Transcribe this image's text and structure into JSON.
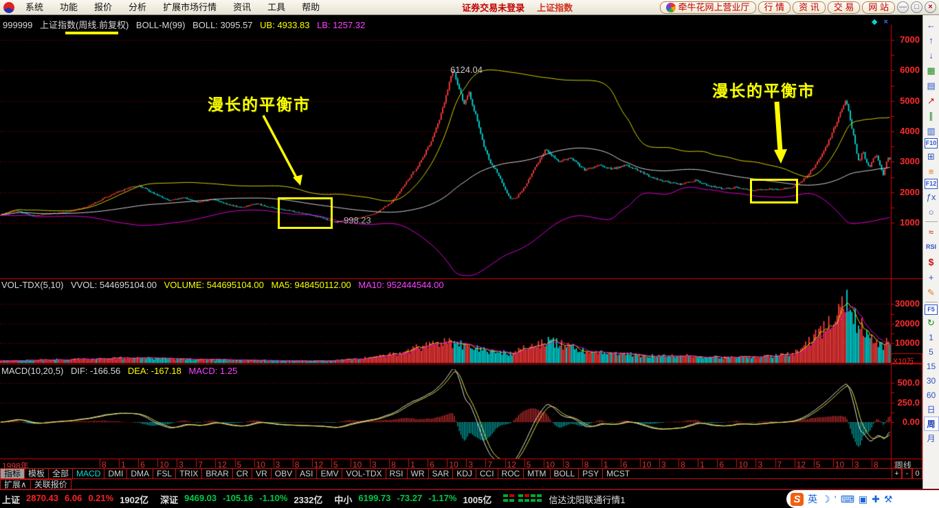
{
  "app": {
    "menu": [
      "系统",
      "功能",
      "报价",
      "分析",
      "扩展市场行情",
      "资讯",
      "工具",
      "帮助"
    ],
    "login_status": "证券交易未登录",
    "index_link": "上证指数",
    "portal_button": "牵牛花网上营业厅",
    "nav_buttons": [
      "行  情",
      "资  讯",
      "交  易",
      "网  站"
    ],
    "window_controls": {
      "minimize": "—",
      "restore": "□",
      "close": "×"
    }
  },
  "chart_header": {
    "code": "999999",
    "name": "上证指数(周线.前复权)",
    "indicator": "BOLL-M(99)",
    "boll": "BOLL: 3095.57",
    "ub": "UB: 4933.83",
    "lb": "LB: 1257.32"
  },
  "vol_header": {
    "name": "VOL-TDX(5,10)",
    "vvol": "VVOL: 544695104.00",
    "volume": "VOLUME: 544695104.00",
    "ma5": "MA5: 948450112.00",
    "ma10": "MA10: 952444544.00"
  },
  "macd_header": {
    "name": "MACD(10,20,5)",
    "dif": "DIF: -166.56",
    "dea": "DEA: -167.18",
    "macd": "MACD: 1.25"
  },
  "annotations": {
    "balance1": "漫长的平衡市",
    "balance2": "漫长的平衡市",
    "peak_label": "6124.04",
    "low_label": "←998.23",
    "vol_unit": "X10万",
    "axis_period": "周线",
    "pane_diamond": "◆",
    "pane_close": "×"
  },
  "axes": {
    "price_ticks": [
      "7000",
      "6000",
      "5000",
      "4000",
      "3000",
      "2000",
      "1000"
    ],
    "vol_ticks": [
      "30000",
      "20000",
      "10000"
    ],
    "macd_ticks": [
      "500.0",
      "250.0",
      "0.00"
    ],
    "timeline_year": "1998年",
    "timeline_months": [
      "8",
      "1",
      "6",
      "10",
      "3",
      "7",
      "12",
      "5",
      "10",
      "3",
      "8",
      "12",
      "5",
      "10",
      "3",
      "8",
      "1",
      "6",
      "10",
      "3",
      "7",
      "12",
      "5",
      "10",
      "3",
      "8",
      "1",
      "6",
      "10",
      "3",
      "8",
      "1",
      "6",
      "10",
      "3",
      "7",
      "12",
      "5",
      "10",
      "3",
      "8",
      "1"
    ]
  },
  "tabs": {
    "row1": [
      {
        "label": "指标",
        "active": true
      },
      {
        "label": "模板"
      },
      {
        "label": "全部"
      },
      {
        "label": "MACD",
        "hl": true
      },
      {
        "label": "DMI"
      },
      {
        "label": "DMA"
      },
      {
        "label": "FSL"
      },
      {
        "label": "TRIX"
      },
      {
        "label": "BRAR"
      },
      {
        "label": "CR"
      },
      {
        "label": "VR"
      },
      {
        "label": "OBV"
      },
      {
        "label": "ASI"
      },
      {
        "label": "EMV"
      },
      {
        "label": "VOL-TDX"
      },
      {
        "label": "RSI"
      },
      {
        "label": "WR"
      },
      {
        "label": "SAR"
      },
      {
        "label": "KDJ"
      },
      {
        "label": "CCI"
      },
      {
        "label": "ROC"
      },
      {
        "label": "MTM"
      },
      {
        "label": "BOLL"
      },
      {
        "label": "PSY"
      },
      {
        "label": "MCST"
      }
    ],
    "row1_right": [
      "+",
      "-",
      "0"
    ],
    "row2": [
      "扩展∧",
      "关联报价"
    ]
  },
  "status_bar": {
    "items": [
      {
        "text": "上证",
        "c": "w"
      },
      {
        "text": "2870.43",
        "c": "r"
      },
      {
        "text": "6.06",
        "c": "r"
      },
      {
        "text": "0.21%",
        "c": "r"
      },
      {
        "text": "1902亿",
        "c": "w",
        "gap": true
      },
      {
        "text": "深证",
        "c": "w"
      },
      {
        "text": "9469.03",
        "c": "g"
      },
      {
        "text": "-105.16",
        "c": "g"
      },
      {
        "text": "-1.10%",
        "c": "g"
      },
      {
        "text": "2332亿",
        "c": "w",
        "gap": true
      },
      {
        "text": "中小",
        "c": "w"
      },
      {
        "text": "6199.73",
        "c": "g"
      },
      {
        "text": "-73.27",
        "c": "g"
      },
      {
        "text": "-1.17%",
        "c": "g"
      },
      {
        "text": "1005亿",
        "c": "w",
        "gap": true
      }
    ],
    "feed_name": "信达沈阳联通行情1",
    "ime_icons": [
      {
        "name": "sogou-logo-icon",
        "glyph": "S"
      },
      {
        "name": "english-mode-icon",
        "glyph": "英"
      },
      {
        "name": "moon-icon",
        "glyph": "☽"
      },
      {
        "name": "apostrophe-icon",
        "glyph": "’"
      },
      {
        "name": "keyboard-icon",
        "glyph": "⌨"
      },
      {
        "name": "clipboard-icon",
        "glyph": "▣"
      },
      {
        "name": "skin-icon",
        "glyph": "✚"
      },
      {
        "name": "wrench-icon",
        "glyph": "⚒"
      }
    ]
  },
  "sidebar": {
    "icons_top": [
      {
        "name": "back-arrow-icon",
        "glyph": "←",
        "cls": "blu"
      },
      {
        "name": "up-arrow-icon",
        "glyph": "↑",
        "cls": "blu"
      },
      {
        "name": "down-arrow-icon",
        "glyph": "↓",
        "cls": "blu"
      },
      {
        "name": "report-icon",
        "glyph": "▦",
        "cls": "grn"
      },
      {
        "name": "quote-table-icon",
        "glyph": "▤",
        "cls": "blu"
      },
      {
        "name": "trend-chart-icon",
        "glyph": "↗",
        "cls": "red"
      },
      {
        "name": "kline-chart-icon",
        "glyph": "∥",
        "cls": "grn"
      },
      {
        "name": "pages-icon",
        "glyph": "▥",
        "cls": "blu"
      },
      {
        "name": "f10-icon",
        "glyph": "F10",
        "cls": "box"
      },
      {
        "name": "tree-icon",
        "glyph": "⊞",
        "cls": "blu"
      },
      {
        "name": "doc-icon",
        "glyph": "≡",
        "cls": "org"
      },
      {
        "name": "f12-icon",
        "glyph": "F12",
        "cls": "box"
      },
      {
        "name": "formula-icon",
        "glyph": "ƒx",
        "cls": "blu"
      },
      {
        "name": "circle-icon",
        "glyph": "○",
        "cls": "blu"
      },
      {
        "name": "divider"
      },
      {
        "name": "wave-icon",
        "glyph": "≈",
        "cls": "red"
      },
      {
        "name": "rsi-icon",
        "glyph": "RSI",
        "cls": "blub"
      },
      {
        "name": "dollar-icon",
        "glyph": "$",
        "cls": "redb"
      },
      {
        "name": "move-icon",
        "glyph": "+",
        "cls": "blu"
      },
      {
        "name": "pencil-icon",
        "glyph": "✎",
        "cls": "org"
      },
      {
        "name": "divider"
      },
      {
        "name": "f5-icon",
        "glyph": "F5",
        "cls": "box"
      },
      {
        "name": "refresh-icon",
        "glyph": "↻",
        "cls": "grn"
      }
    ],
    "periods": [
      "1",
      "5",
      "15",
      "30",
      "60",
      "日",
      "周",
      "月"
    ],
    "active_period": "周"
  },
  "chart_data": {
    "type": "candlestick",
    "symbol": "999999",
    "title": "上证指数(周线.前复权)",
    "period": "weekly",
    "price_axis": {
      "ticks": [
        7000,
        6000,
        5000,
        4000,
        3000,
        2000,
        1000
      ]
    },
    "vol_axis": {
      "ticks": [
        30000,
        20000,
        10000
      ],
      "unit": "X10万"
    },
    "macd_axis": {
      "ticks": [
        500.0,
        250.0,
        0.0
      ]
    },
    "key_points": {
      "all_time_high": 6124.04,
      "major_low": 998.23,
      "boll": {
        "mid": 3095.57,
        "ub": 4933.83,
        "lb": 1257.32
      },
      "volume": {
        "vvol": 544695104.0,
        "ma5": 948450112.0,
        "ma10": 952444544.0
      },
      "macd": {
        "dif": -166.56,
        "dea": -167.18,
        "macd": 1.25
      }
    },
    "candles": 540,
    "price_anchors": [
      [
        0,
        1250
      ],
      [
        22,
        1400
      ],
      [
        48,
        1230
      ],
      [
        75,
        1300
      ],
      [
        100,
        1360
      ],
      [
        125,
        1520
      ],
      [
        150,
        1800
      ],
      [
        175,
        2050
      ],
      [
        200,
        2230
      ],
      [
        222,
        1980
      ],
      [
        245,
        1720
      ],
      [
        268,
        1820
      ],
      [
        288,
        1660
      ],
      [
        308,
        1780
      ],
      [
        328,
        1610
      ],
      [
        350,
        1500
      ],
      [
        372,
        1630
      ],
      [
        395,
        1490
      ],
      [
        418,
        1400
      ],
      [
        442,
        1310
      ],
      [
        465,
        1180
      ],
      [
        487,
        1010
      ],
      [
        502,
        1090
      ],
      [
        522,
        1160
      ],
      [
        545,
        1310
      ],
      [
        568,
        1650
      ],
      [
        588,
        2250
      ],
      [
        608,
        2900
      ],
      [
        624,
        3550
      ],
      [
        638,
        4350
      ],
      [
        650,
        5300
      ],
      [
        658,
        6080
      ],
      [
        666,
        5500
      ],
      [
        674,
        4900
      ],
      [
        682,
        5250
      ],
      [
        692,
        4450
      ],
      [
        702,
        3580
      ],
      [
        712,
        3000
      ],
      [
        722,
        2680
      ],
      [
        732,
        2180
      ],
      [
        742,
        1780
      ],
      [
        750,
        1820
      ],
      [
        762,
        2150
      ],
      [
        776,
        2750
      ],
      [
        793,
        3420
      ],
      [
        810,
        3020
      ],
      [
        830,
        3130
      ],
      [
        850,
        2720
      ],
      [
        870,
        2880
      ],
      [
        890,
        2760
      ],
      [
        910,
        2890
      ],
      [
        930,
        2680
      ],
      [
        950,
        2460
      ],
      [
        970,
        2340
      ],
      [
        990,
        2260
      ],
      [
        1010,
        2390
      ],
      [
        1030,
        2210
      ],
      [
        1050,
        2120
      ],
      [
        1070,
        2160
      ],
      [
        1092,
        2060
      ],
      [
        1112,
        2110
      ],
      [
        1132,
        2090
      ],
      [
        1152,
        2160
      ],
      [
        1166,
        2360
      ],
      [
        1180,
        2720
      ],
      [
        1196,
        3250
      ],
      [
        1210,
        3950
      ],
      [
        1222,
        4650
      ],
      [
        1230,
        5080
      ],
      [
        1237,
        4280
      ],
      [
        1243,
        3580
      ],
      [
        1249,
        2920
      ],
      [
        1254,
        3380
      ],
      [
        1259,
        3020
      ],
      [
        1264,
        2780
      ],
      [
        1269,
        3090
      ],
      [
        1274,
        3240
      ],
      [
        1279,
        2920
      ],
      [
        1284,
        2580
      ],
      [
        1288,
        2940
      ],
      [
        1292,
        3200
      ],
      [
        1296,
        2880
      ]
    ],
    "vol_anchors": [
      [
        0,
        3
      ],
      [
        80,
        5
      ],
      [
        160,
        7
      ],
      [
        200,
        8
      ],
      [
        240,
        6
      ],
      [
        300,
        5
      ],
      [
        360,
        4
      ],
      [
        440,
        3
      ],
      [
        480,
        3
      ],
      [
        520,
        6
      ],
      [
        560,
        11
      ],
      [
        590,
        17
      ],
      [
        620,
        26
      ],
      [
        650,
        32
      ],
      [
        662,
        28
      ],
      [
        680,
        24
      ],
      [
        700,
        19
      ],
      [
        720,
        16
      ],
      [
        742,
        14
      ],
      [
        762,
        22
      ],
      [
        780,
        28
      ],
      [
        800,
        32
      ],
      [
        820,
        26
      ],
      [
        840,
        20
      ],
      [
        860,
        17
      ],
      [
        880,
        15
      ],
      [
        900,
        14
      ],
      [
        930,
        11
      ],
      [
        960,
        10
      ],
      [
        990,
        11
      ],
      [
        1020,
        9
      ],
      [
        1050,
        8
      ],
      [
        1092,
        9
      ],
      [
        1120,
        10
      ],
      [
        1150,
        13
      ],
      [
        1166,
        20
      ],
      [
        1180,
        34
      ],
      [
        1196,
        50
      ],
      [
        1210,
        70
      ],
      [
        1222,
        88
      ],
      [
        1230,
        97
      ],
      [
        1237,
        84
      ],
      [
        1243,
        64
      ],
      [
        1249,
        48
      ],
      [
        1254,
        54
      ],
      [
        1259,
        42
      ],
      [
        1264,
        32
      ],
      [
        1269,
        38
      ],
      [
        1274,
        32
      ],
      [
        1279,
        26
      ],
      [
        1284,
        22
      ],
      [
        1288,
        32
      ],
      [
        1292,
        38
      ],
      [
        1296,
        28
      ]
    ]
  }
}
